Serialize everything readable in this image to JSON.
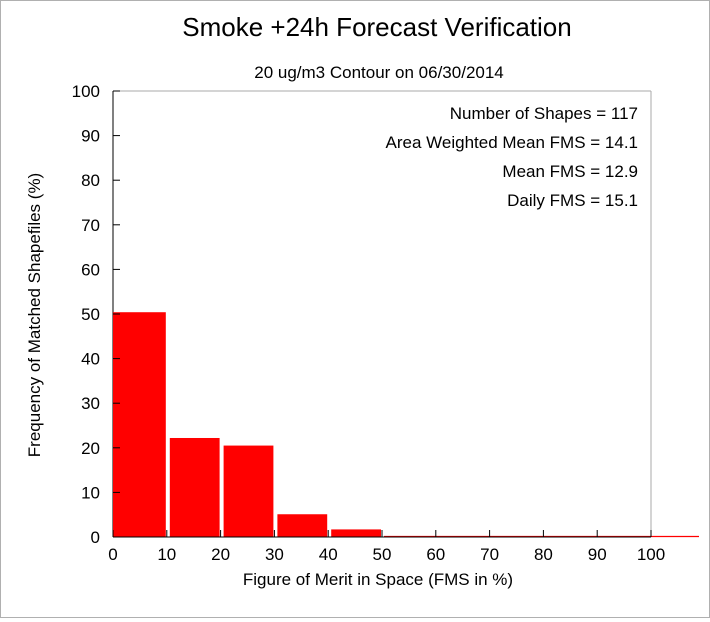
{
  "chart_data": {
    "type": "bar",
    "title": "Smoke +24h Forecast Verification",
    "subtitle": "20 ug/m3 Contour on 06/30/2014",
    "xlabel": "Figure of Merit in Space (FMS in %)",
    "ylabel": "Frequency of Matched Shapefiles (%)",
    "xlim": [
      0,
      100
    ],
    "ylim": [
      0,
      100
    ],
    "x_ticks": [
      0,
      10,
      20,
      30,
      40,
      50,
      60,
      70,
      80,
      90,
      100
    ],
    "y_ticks": [
      0,
      10,
      20,
      30,
      40,
      50,
      60,
      70,
      80,
      90,
      100
    ],
    "bins": [
      {
        "start": 0,
        "end": 10,
        "value": 50.4
      },
      {
        "start": 10,
        "end": 20,
        "value": 22.2
      },
      {
        "start": 20,
        "end": 30,
        "value": 20.5
      },
      {
        "start": 30,
        "end": 40,
        "value": 5.1
      },
      {
        "start": 40,
        "end": 50,
        "value": 1.7
      },
      {
        "start": 50,
        "end": 60,
        "value": 0
      },
      {
        "start": 60,
        "end": 70,
        "value": 0
      },
      {
        "start": 70,
        "end": 80,
        "value": 0
      },
      {
        "start": 80,
        "end": 90,
        "value": 0
      },
      {
        "start": 90,
        "end": 100,
        "value": 0
      }
    ],
    "bar_color": "#ff0000",
    "grid": false,
    "annotations": [
      "Number of Shapes = 117",
      "Area Weighted Mean FMS = 14.1",
      "Mean FMS = 12.9",
      "Daily FMS = 15.1"
    ],
    "annotation_placement": "top-right"
  }
}
